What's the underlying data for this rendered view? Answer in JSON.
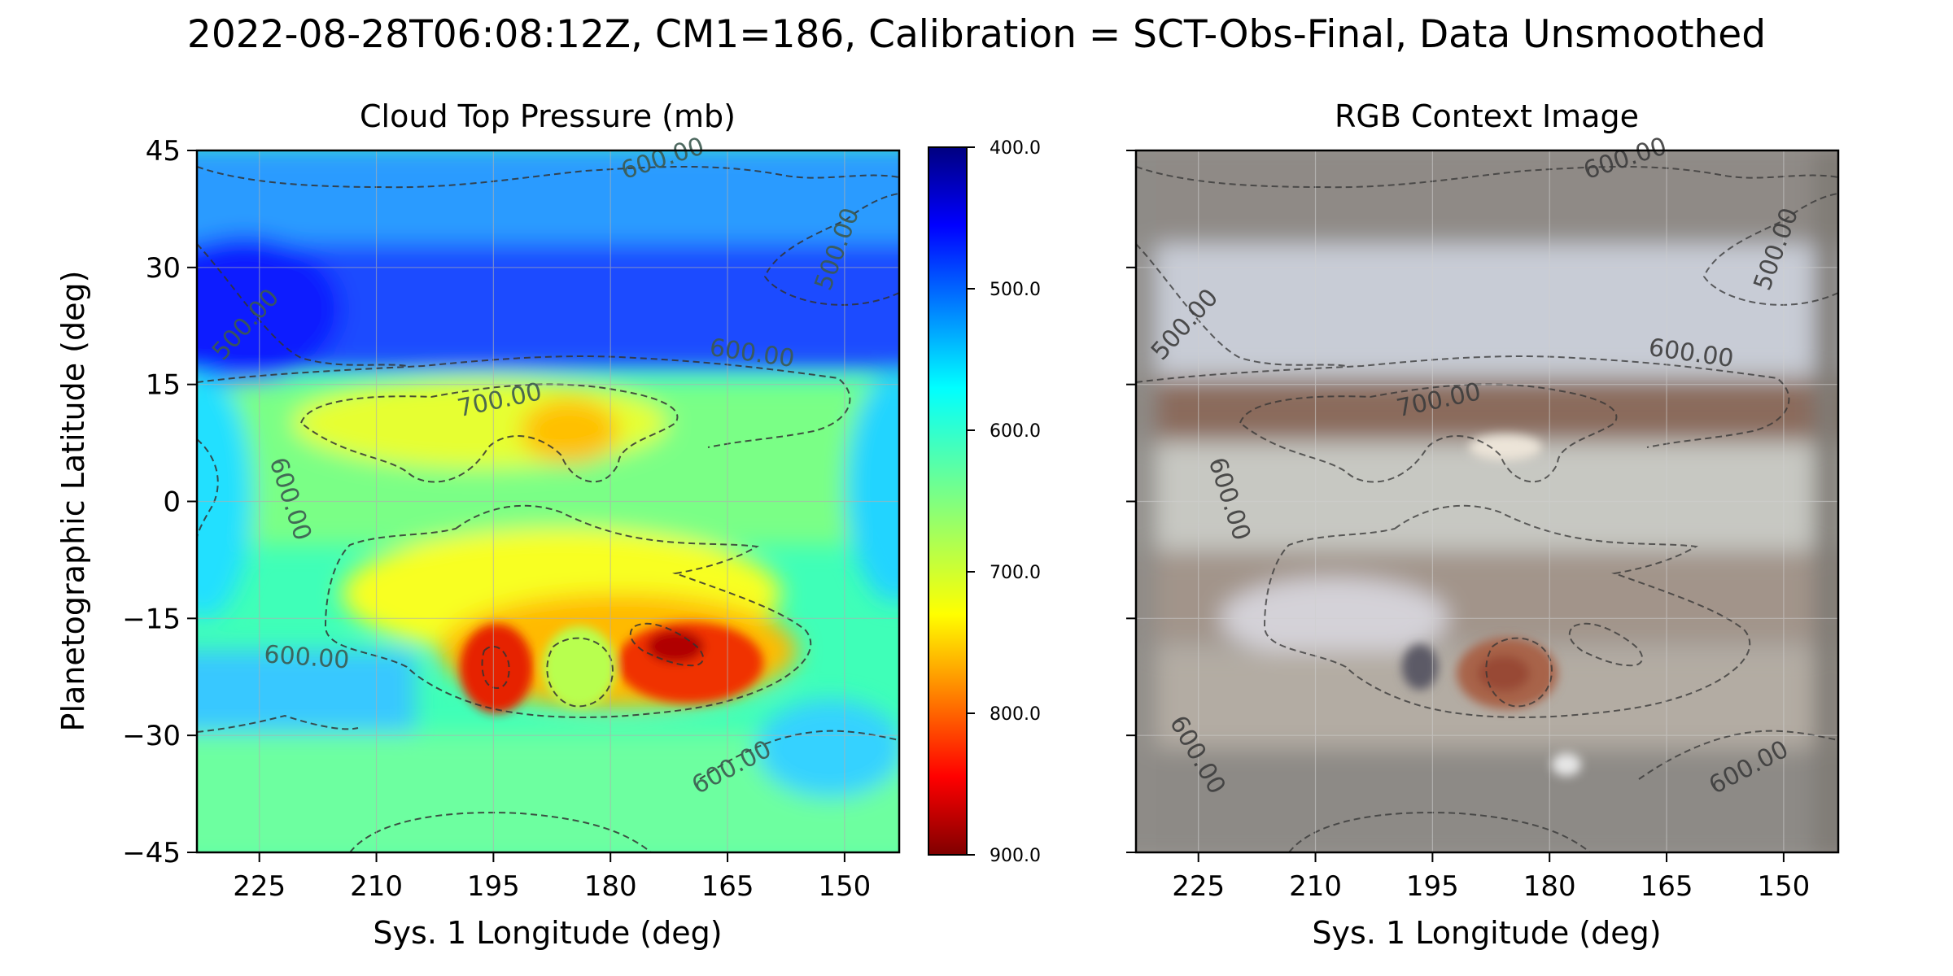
{
  "suptitle": "2022-08-28T06:08:12Z, CM1=186, Calibration = SCT-Obs-Final, Data Unsmoothed",
  "chart_data": [
    {
      "type": "heatmap",
      "title": "Cloud Top Pressure (mb)",
      "xlabel": "Sys. 1 Longitude (deg)",
      "ylabel": "Planetographic Latitude (deg)",
      "xlim": [
        233,
        143
      ],
      "ylim": [
        -45,
        45
      ],
      "xticks": [
        225,
        210,
        195,
        180,
        165,
        150
      ],
      "yticks": [
        45,
        30,
        15,
        0,
        -15,
        -30,
        -45
      ],
      "xtick_labels": [
        "225",
        "210",
        "195",
        "180",
        "165",
        "150"
      ],
      "ytick_labels": [
        "45",
        "30",
        "15",
        "0",
        "−15",
        "−30",
        "−45"
      ],
      "grid": true,
      "colormap": "jet_r",
      "colorbar": {
        "min": 400,
        "max": 900,
        "ticks": [
          400,
          500,
          600,
          700,
          800,
          900
        ],
        "tick_labels": [
          "400.0",
          "500.0",
          "600.0",
          "700.0",
          "800.0",
          "900.0"
        ]
      },
      "contour_labels": [
        {
          "text": "600.00",
          "lon": 173,
          "lat": 43
        },
        {
          "text": "500.00",
          "lon": 150,
          "lat": 32
        },
        {
          "text": "500.00",
          "lon": 226,
          "lat": 22
        },
        {
          "text": "600.00",
          "lon": 162,
          "lat": 18
        },
        {
          "text": "700.00",
          "lon": 194,
          "lat": 12
        },
        {
          "text": "600.00",
          "lon": 222,
          "lat": 0
        },
        {
          "text": "600.00",
          "lon": 219,
          "lat": -21
        },
        {
          "text": "600.00",
          "lon": 164,
          "lat": -35
        }
      ]
    },
    {
      "type": "image",
      "title": "RGB Context Image",
      "xlabel": "Sys. 1 Longitude (deg)",
      "xlim": [
        233,
        143
      ],
      "ylim": [
        -45,
        45
      ],
      "xticks": [
        225,
        210,
        195,
        180,
        165,
        150
      ],
      "xtick_labels": [
        "225",
        "210",
        "195",
        "180",
        "165",
        "150"
      ],
      "grid": true,
      "contour_labels": [
        {
          "text": "600.00",
          "lon": 170,
          "lat": 43
        },
        {
          "text": "500.00",
          "lon": 150,
          "lat": 32
        },
        {
          "text": "500.00",
          "lon": 226,
          "lat": 22
        },
        {
          "text": "600.00",
          "lon": 162,
          "lat": 18
        },
        {
          "text": "700.00",
          "lon": 194,
          "lat": 12
        },
        {
          "text": "600.00",
          "lon": 222,
          "lat": 0
        },
        {
          "text": "600.00",
          "lon": 226,
          "lat": -33
        },
        {
          "text": "600.00",
          "lon": 154,
          "lat": -35
        }
      ]
    }
  ]
}
